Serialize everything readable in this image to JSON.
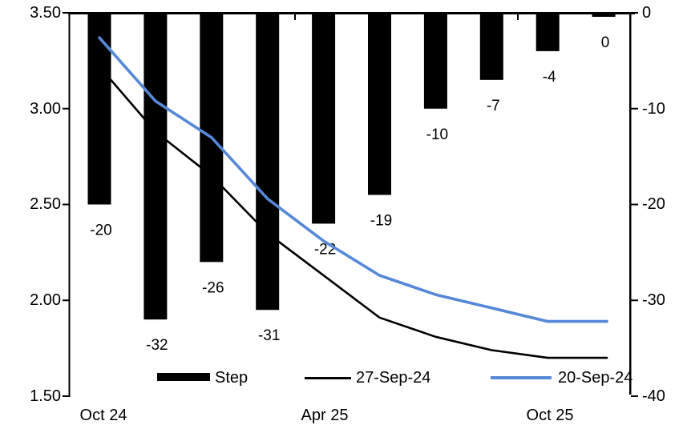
{
  "chart_data": {
    "type": "combo_bar_line",
    "title": "",
    "grid": "off",
    "x_axis": {
      "tick_labels": [
        "Oct 24",
        "Apr 25",
        "Oct 25"
      ]
    },
    "left_axis": {
      "min": 1.5,
      "max": 3.5,
      "ticks": [
        "3.50",
        "3.00",
        "2.50",
        "2.00",
        "1.50"
      ]
    },
    "right_axis": {
      "min": -40,
      "max": 0,
      "ticks": [
        "0",
        "-10",
        "-20",
        "-30",
        "-40"
      ]
    },
    "bar_series": {
      "name": "Step",
      "axis": "right",
      "color": "#000000",
      "values": [
        -20,
        -32,
        -26,
        -31,
        -22,
        -19,
        -10,
        -7,
        -4,
        0
      ],
      "data_labels": [
        "-20",
        "-32",
        "-26",
        "-31",
        "-22",
        "-19",
        "-10",
        "-7",
        "-4",
        "0"
      ]
    },
    "line_series": [
      {
        "name": "27-Sep-24",
        "axis": "left",
        "color": "#000000",
        "values": [
          3.22,
          2.88,
          2.65,
          2.35,
          2.13,
          1.91,
          1.81,
          1.74,
          1.7,
          1.7
        ]
      },
      {
        "name": "20-Sep-24",
        "axis": "left",
        "color": "#5688d8",
        "values": [
          3.37,
          3.04,
          2.85,
          2.53,
          2.31,
          2.13,
          2.03,
          1.96,
          1.89,
          1.89
        ]
      }
    ],
    "legend": {
      "position": "bottom",
      "items": [
        "Step",
        "27-Sep-24",
        "20-Sep-24"
      ]
    }
  }
}
